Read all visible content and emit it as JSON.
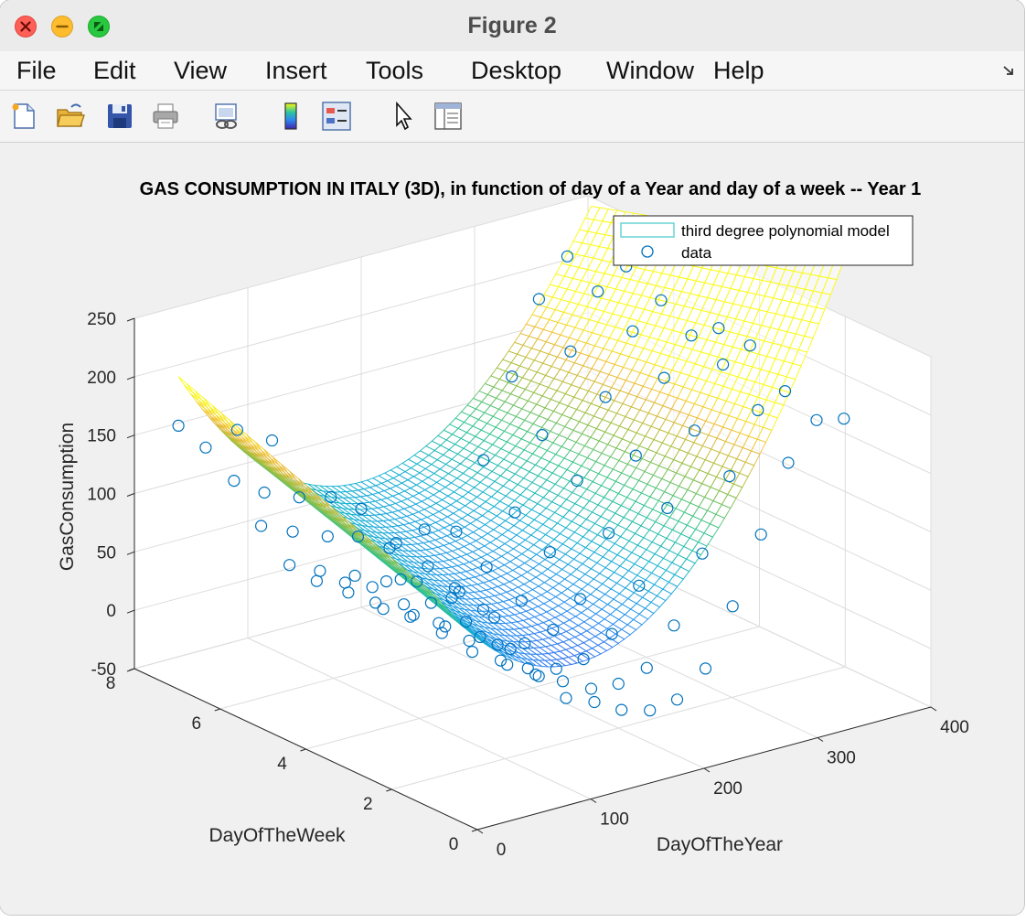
{
  "window": {
    "title": "Figure 2"
  },
  "menu": {
    "items": [
      "File",
      "Edit",
      "View",
      "Insert",
      "Tools",
      "Desktop",
      "Window",
      "Help"
    ]
  },
  "toolbar": {
    "tools": [
      "new-figure-icon",
      "open-file-icon",
      "save-icon",
      "print-icon",
      "link-plot-icon",
      "colorbar-icon",
      "legend-icon",
      "pointer-icon",
      "property-inspector-icon"
    ]
  },
  "colors": {
    "data_marker": "#0072bd",
    "legend_surface_swatch": "#5fcfcf",
    "colormap": "parula"
  },
  "chart_data": {
    "type": "surface3d_scatter",
    "title": "GAS CONSUMPTION IN ITALY (3D), in function of day of a Year and day of a week -- Year 1",
    "xlabel": "DayOfTheYear",
    "ylabel": "DayOfTheWeek",
    "zlabel": "GasConsumption",
    "xlim": [
      0,
      400
    ],
    "ylim": [
      0,
      8
    ],
    "zlim": [
      -50,
      250
    ],
    "xticks": [
      "0",
      "100",
      "200",
      "300",
      "400"
    ],
    "yticks": [
      "0",
      "2",
      "4",
      "6",
      "8"
    ],
    "zticks": [
      "-50",
      "0",
      "50",
      "100",
      "150",
      "200",
      "250"
    ],
    "grid": true,
    "legend": {
      "position": "top-right",
      "entries": [
        "third degree polynomial model",
        "data"
      ]
    },
    "surface": {
      "name": "third degree polynomial model",
      "x_range": [
        1,
        365
      ],
      "y_range": [
        1,
        7
      ],
      "colormap": "parula"
    },
    "series": [
      {
        "name": "data",
        "marker": "circle",
        "points": [
          [
            1,
            7,
            175
          ],
          [
            4,
            2,
            160
          ],
          [
            8,
            5,
            195
          ],
          [
            11,
            3,
            170
          ],
          [
            15,
            6,
            185
          ],
          [
            18,
            1,
            135
          ],
          [
            22,
            4,
            160
          ],
          [
            25,
            7,
            150
          ],
          [
            29,
            2,
            165
          ],
          [
            32,
            5,
            140
          ],
          [
            36,
            3,
            130
          ],
          [
            39,
            6,
            125
          ],
          [
            43,
            1,
            110
          ],
          [
            46,
            4,
            120
          ],
          [
            50,
            7,
            115
          ],
          [
            53,
            2,
            100
          ],
          [
            57,
            5,
            100
          ],
          [
            60,
            3,
            95
          ],
          [
            64,
            6,
            85
          ],
          [
            67,
            1,
            70
          ],
          [
            71,
            4,
            75
          ],
          [
            74,
            7,
            70
          ],
          [
            78,
            2,
            60
          ],
          [
            81,
            5,
            60
          ],
          [
            85,
            3,
            50
          ],
          [
            88,
            6,
            45
          ],
          [
            92,
            1,
            40
          ],
          [
            95,
            4,
            40
          ],
          [
            99,
            7,
            30
          ],
          [
            102,
            2,
            30
          ],
          [
            106,
            5,
            25
          ],
          [
            109,
            3,
            22
          ],
          [
            113,
            6,
            20
          ],
          [
            116,
            1,
            15
          ],
          [
            120,
            4,
            18
          ],
          [
            123,
            7,
            10
          ],
          [
            127,
            2,
            15
          ],
          [
            130,
            5,
            12
          ],
          [
            134,
            3,
            8
          ],
          [
            137,
            6,
            5
          ],
          [
            141,
            1,
            5
          ],
          [
            144,
            4,
            5
          ],
          [
            148,
            7,
            2
          ],
          [
            151,
            2,
            3
          ],
          [
            155,
            5,
            0
          ],
          [
            158,
            3,
            -5
          ],
          [
            162,
            6,
            -3
          ],
          [
            165,
            1,
            -8
          ],
          [
            169,
            4,
            -5
          ],
          [
            172,
            7,
            -8
          ],
          [
            176,
            2,
            -10
          ],
          [
            179,
            5,
            -5
          ],
          [
            183,
            3,
            -12
          ],
          [
            186,
            6,
            -8
          ],
          [
            190,
            1,
            -15
          ],
          [
            193,
            4,
            -10
          ],
          [
            197,
            7,
            -8
          ],
          [
            200,
            2,
            -12
          ],
          [
            204,
            5,
            -8
          ],
          [
            207,
            3,
            -10
          ],
          [
            211,
            6,
            -5
          ],
          [
            214,
            1,
            -12
          ],
          [
            218,
            4,
            -5
          ],
          [
            221,
            7,
            -3
          ],
          [
            225,
            2,
            -5
          ],
          [
            228,
            5,
            0
          ],
          [
            232,
            3,
            5
          ],
          [
            235,
            6,
            10
          ],
          [
            239,
            1,
            8
          ],
          [
            242,
            4,
            15
          ],
          [
            246,
            7,
            20
          ],
          [
            249,
            2,
            25
          ],
          [
            253,
            5,
            35
          ],
          [
            256,
            3,
            40
          ],
          [
            260,
            6,
            50
          ],
          [
            263,
            1,
            55
          ],
          [
            267,
            4,
            65
          ],
          [
            270,
            7,
            75
          ],
          [
            274,
            2,
            80
          ],
          [
            277,
            5,
            90
          ],
          [
            281,
            3,
            100
          ],
          [
            284,
            6,
            110
          ],
          [
            288,
            1,
            110
          ],
          [
            291,
            4,
            125
          ],
          [
            295,
            7,
            140
          ],
          [
            298,
            2,
            140
          ],
          [
            302,
            5,
            155
          ],
          [
            305,
            3,
            160
          ],
          [
            309,
            6,
            175
          ],
          [
            312,
            1,
            165
          ],
          [
            316,
            4,
            185
          ],
          [
            319,
            7,
            200
          ],
          [
            323,
            2,
            190
          ],
          [
            326,
            5,
            205
          ],
          [
            330,
            3,
            210
          ],
          [
            333,
            6,
            220
          ],
          [
            337,
            1,
            195
          ],
          [
            340,
            4,
            215
          ],
          [
            344,
            7,
            230
          ],
          [
            347,
            2,
            200
          ],
          [
            351,
            5,
            225
          ],
          [
            354,
            3,
            220
          ],
          [
            358,
            6,
            235
          ],
          [
            361,
            1,
            190
          ],
          [
            364,
            4,
            215
          ]
        ]
      }
    ]
  }
}
